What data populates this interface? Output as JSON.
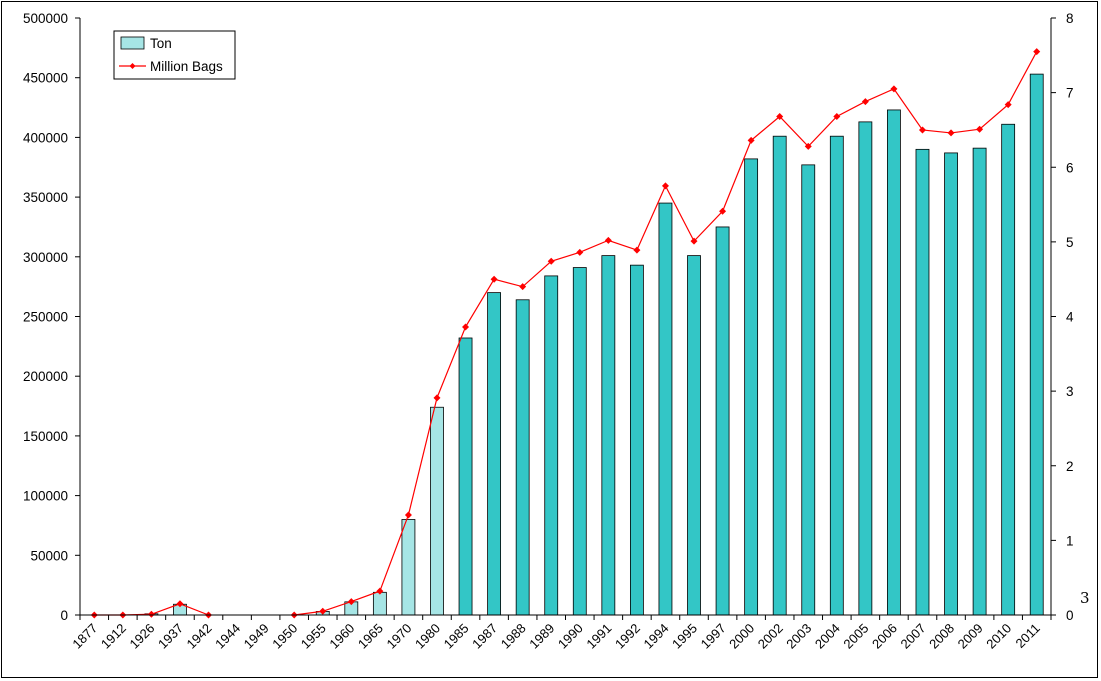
{
  "chart_data": {
    "type": "bar",
    "categories": [
      "1877",
      "1912",
      "1926",
      "1937",
      "1942",
      "1944",
      "1949",
      "1950",
      "1955",
      "1960",
      "1965",
      "1970",
      "1980",
      "1985",
      "1987",
      "1988",
      "1989",
      "1990",
      "1991",
      "1992",
      "1994",
      "1995",
      "1997",
      "2000",
      "2002",
      "2003",
      "2004",
      "2005",
      "2006",
      "2007",
      "2008",
      "2009",
      "2010",
      "2011"
    ],
    "series": [
      {
        "name": "Ton",
        "type": "bar",
        "axis": "left",
        "values": [
          0,
          0,
          1000,
          9000,
          0,
          0,
          0,
          0,
          3000,
          11000,
          19000,
          80000,
          174000,
          232000,
          270000,
          264000,
          284000,
          291000,
          301000,
          293000,
          345000,
          301000,
          325000,
          382000,
          401000,
          377000,
          401000,
          413000,
          423000,
          390000,
          387000,
          391000,
          411000,
          453000
        ],
        "colors": [
          "#a6e5e5",
          "#a6e5e5",
          "#a6e5e5",
          "#a6e5e5",
          "#a6e5e5",
          "#a6e5e5",
          "#a6e5e5",
          "#a6e5e5",
          "#a6e5e5",
          "#a6e5e5",
          "#a6e5e5",
          "#a6e5e5",
          "#a6e5e5",
          "#33c6c6",
          "#33c6c6",
          "#33c6c6",
          "#33c6c6",
          "#33c6c6",
          "#33c6c6",
          "#33c6c6",
          "#33c6c6",
          "#33c6c6",
          "#33c6c6",
          "#33c6c6",
          "#33c6c6",
          "#33c6c6",
          "#33c6c6",
          "#33c6c6",
          "#33c6c6",
          "#33c6c6",
          "#33c6c6",
          "#33c6c6",
          "#33c6c6",
          "#33c6c6"
        ]
      },
      {
        "name": "Million Bags",
        "type": "line",
        "axis": "right",
        "values": [
          0,
          0,
          0.01,
          0.15,
          0,
          null,
          null,
          0,
          0.05,
          0.18,
          0.32,
          1.34,
          2.91,
          3.86,
          4.5,
          4.4,
          4.74,
          4.86,
          5.02,
          4.89,
          5.75,
          5.01,
          5.41,
          6.36,
          6.68,
          6.28,
          6.68,
          6.88,
          7.05,
          6.5,
          6.46,
          6.51,
          6.84,
          7.55
        ],
        "color": "#ff0000"
      }
    ],
    "y_left": {
      "min": 0,
      "max": 500000,
      "ticks": [
        "0",
        "50000",
        "100000",
        "150000",
        "200000",
        "250000",
        "300000",
        "350000",
        "400000",
        "450000",
        "500000"
      ]
    },
    "y_right": {
      "min": 0,
      "max": 8,
      "ticks": [
        "0",
        "1",
        "2",
        "3",
        "4",
        "5",
        "6",
        "7",
        "8"
      ]
    },
    "legend": {
      "placement": "top-left",
      "entries": [
        "Ton",
        "Million Bags"
      ]
    },
    "grid": false,
    "annotations": [
      "3"
    ]
  }
}
